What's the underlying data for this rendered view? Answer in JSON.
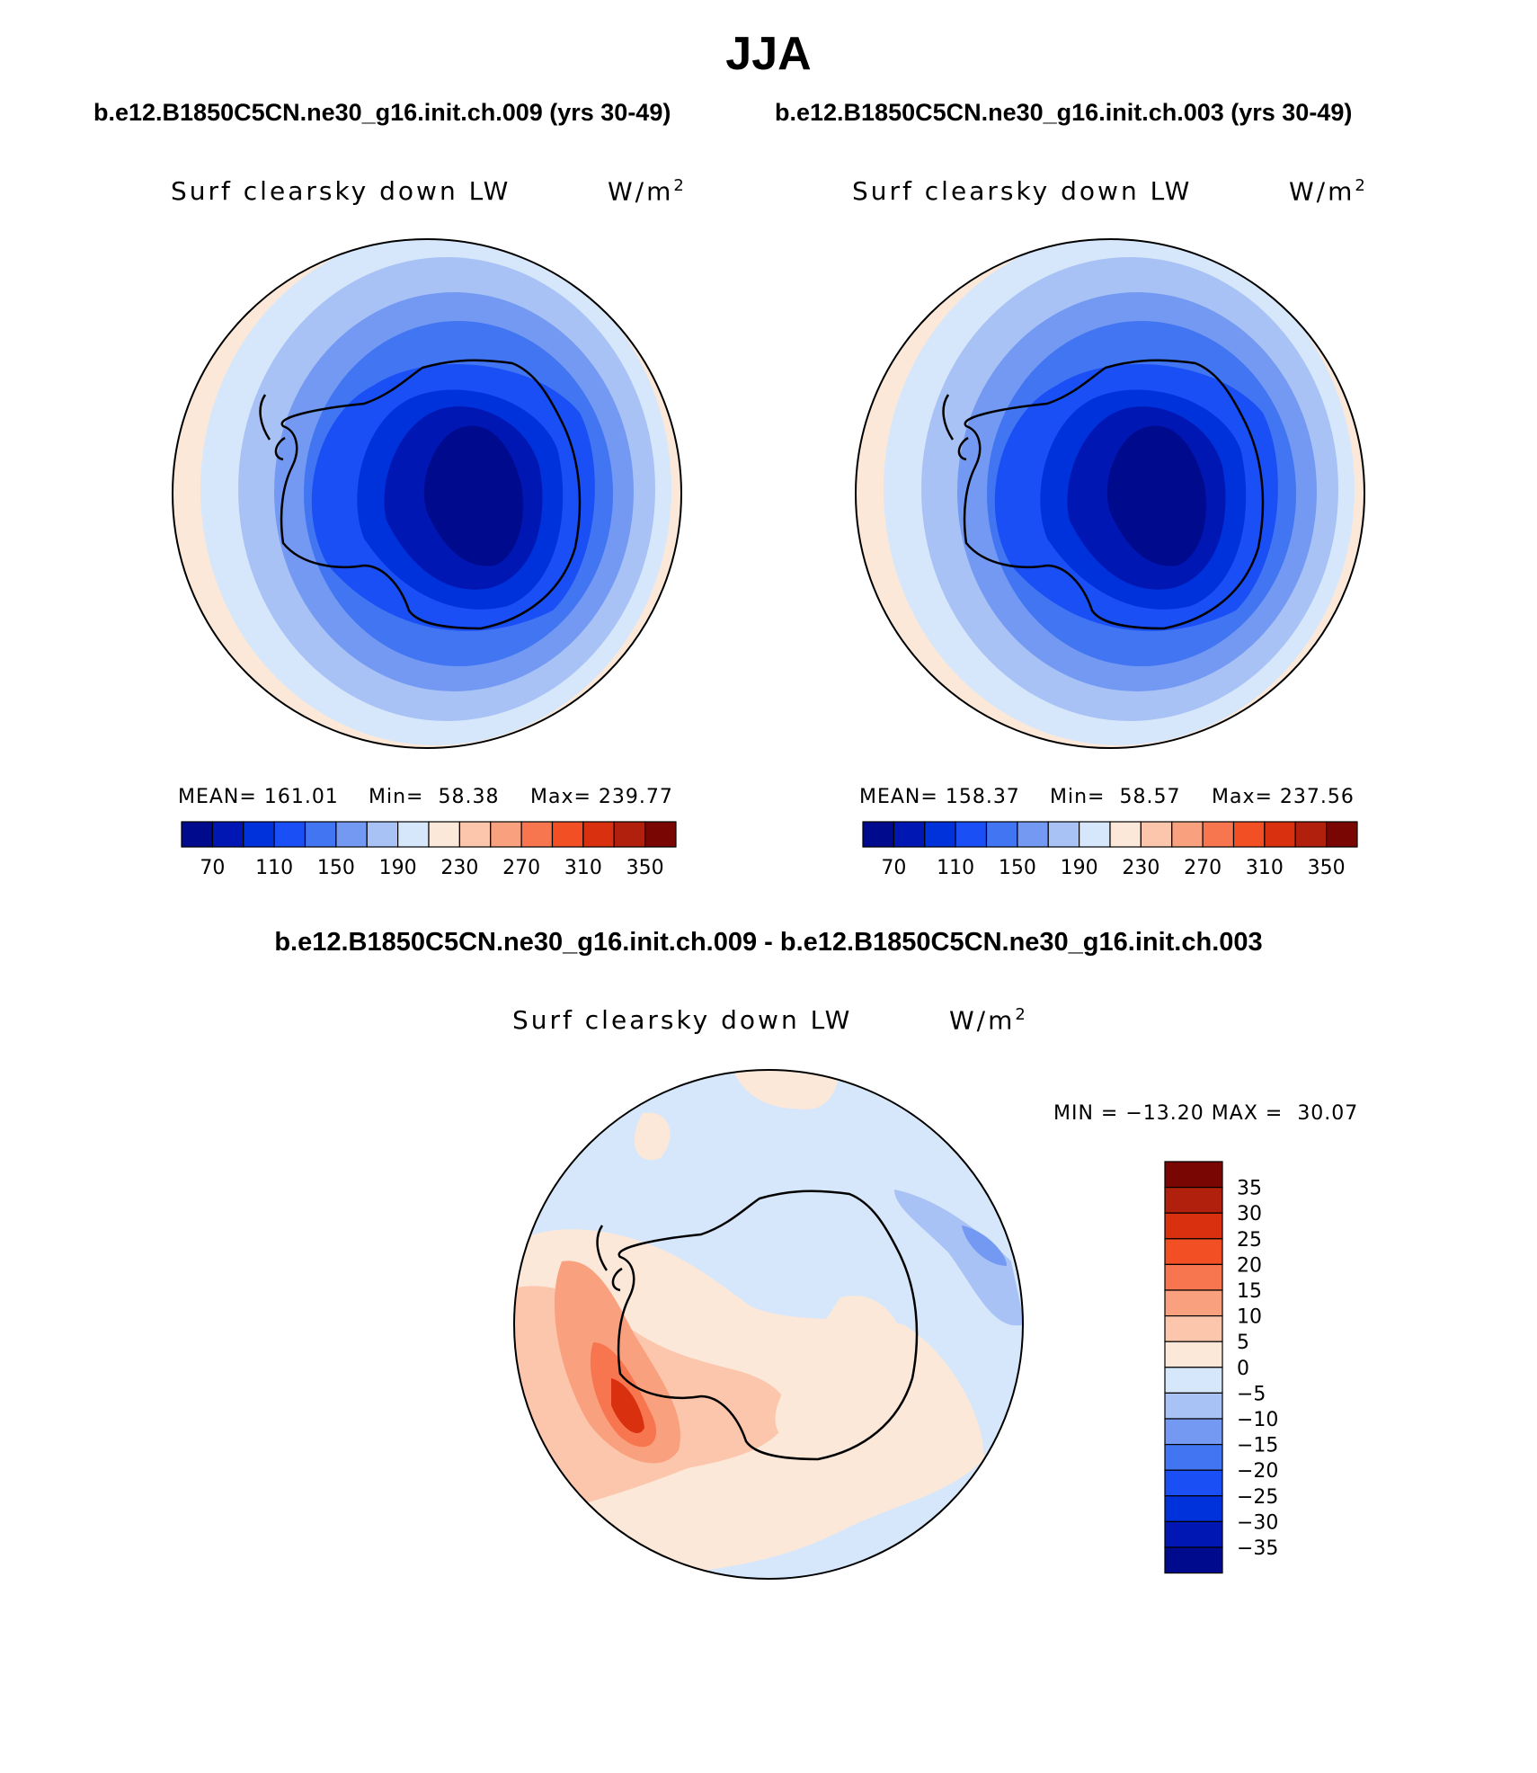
{
  "title": "JJA",
  "case_a": "b.e12.B1850C5CN.ne30_g16.init.ch.009 (yrs 30-49)",
  "case_b": "b.e12.B1850C5CN.ne30_g16.init.ch.003 (yrs 30-49)",
  "diff_title": "b.e12.B1850C5CN.ne30_g16.init.ch.009 - b.e12.B1850C5CN.ne30_g16.init.ch.003",
  "variable": "Surf clearsky down LW",
  "units": "W/m",
  "units_exponent": "2",
  "panels": [
    {
      "mean_label": "MEAN=",
      "mean": "161.01",
      "min_label": "Min=",
      "min": "58.38",
      "max_label": "Max=",
      "max": "239.77"
    },
    {
      "mean_label": "MEAN=",
      "mean": "158.37",
      "min_label": "Min=",
      "min": "58.57",
      "max_label": "Max=",
      "max": "237.56"
    }
  ],
  "diff_stats": {
    "min_label": "MIN =",
    "min": "−13.20",
    "max_label": "MAX =",
    "max": "30.07"
  },
  "abs_colorbar": {
    "colors": [
      "#000a8c",
      "#0017b3",
      "#0032dc",
      "#1a4ff5",
      "#4275f2",
      "#7399f2",
      "#a8c2f5",
      "#d6e7fb",
      "#fce8d8",
      "#fcc6ac",
      "#f9a07f",
      "#f7764f",
      "#f24f24",
      "#d9300f",
      "#b0200c",
      "#7a0604"
    ],
    "labels": [
      "70",
      "110",
      "150",
      "190",
      "230",
      "270",
      "310",
      "350"
    ]
  },
  "diff_colorbar": {
    "colors": [
      "#7a0604",
      "#b0200c",
      "#d9300f",
      "#f24f24",
      "#f7764f",
      "#f9a07f",
      "#fcc6ac",
      "#fce8d8",
      "#d6e7fb",
      "#a8c2f5",
      "#7399f2",
      "#4275f2",
      "#1a4ff5",
      "#0032dc",
      "#0017b3",
      "#000a8c"
    ],
    "labels": [
      "35",
      "30",
      "25",
      "20",
      "15",
      "10",
      "5",
      "0",
      "−5",
      "−10",
      "−15",
      "−20",
      "−25",
      "−30",
      "−35"
    ]
  }
}
